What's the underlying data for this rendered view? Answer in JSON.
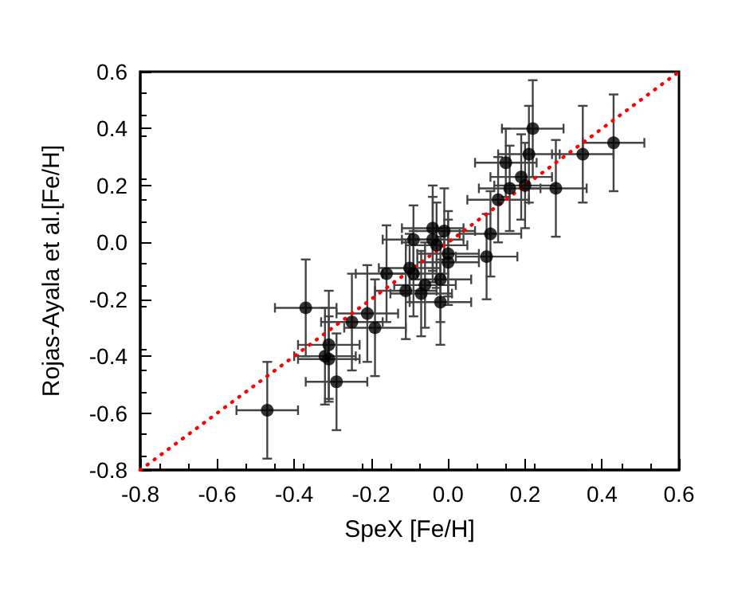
{
  "chart_data": {
    "type": "scatter",
    "xlabel": "SpeX [Fe/H]",
    "ylabel": "Rojas-Ayala et al.[Fe/H]",
    "xlim": [
      -0.8,
      0.6
    ],
    "ylim": [
      -0.8,
      0.6
    ],
    "xticks": [
      -0.8,
      {
        "value": -0.6,
        "label": "-0.6"
      },
      {
        "value": -0.4,
        "label": "-0.4"
      },
      {
        "value": -0.2,
        "label": "-0.2"
      },
      {
        "value": 0,
        "label": "0.0"
      },
      0.2,
      0.4,
      0.6
    ],
    "yticks": [
      -0.8,
      {
        "value": -0.6,
        "label": "-0.6"
      },
      {
        "value": -0.4,
        "label": "-0.4"
      },
      {
        "value": -0.2,
        "label": "-0.2"
      },
      {
        "value": 0,
        "label": "0.0"
      },
      0.2,
      0.4,
      0.6
    ],
    "grid": false,
    "series": [
      {
        "color": "#000000",
        "marker": "circle",
        "x": [
          -0.47,
          -0.37,
          -0.31,
          -0.32,
          -0.31,
          -0.29,
          -0.25,
          -0.21,
          -0.19,
          -0.16,
          -0.11,
          -0.1,
          -0.09,
          0.22,
          0.43,
          0.35,
          0.21,
          0.15,
          0.19,
          0.2,
          0.16,
          0.28,
          0.13,
          0.11,
          0.1,
          -0.01,
          -0.04,
          -0.04,
          -0.03,
          0.0,
          0.0,
          -0.09,
          -0.02,
          -0.06,
          -0.07,
          -0.02
        ],
        "values": [
          -0.59,
          -0.23,
          -0.36,
          -0.4,
          -0.41,
          -0.49,
          -0.28,
          -0.25,
          -0.3,
          -0.11,
          -0.17,
          -0.09,
          0.01,
          0.4,
          0.35,
          0.31,
          0.31,
          0.28,
          0.23,
          0.2,
          0.19,
          0.19,
          0.15,
          0.03,
          -0.05,
          0.04,
          0.05,
          0.01,
          -0.01,
          -0.04,
          -0.07,
          -0.11,
          -0.13,
          -0.15,
          -0.18,
          -0.21
        ],
        "errors": [
          0.17,
          0.17,
          0.19,
          0.17,
          0.15,
          0.17,
          0.17,
          0.17,
          0.17,
          0.17,
          0.17,
          0.12,
          0.12,
          0.17,
          0.17,
          0.17,
          0.17,
          0.12,
          0.15,
          0.15,
          0.15,
          0.17,
          0.15,
          0.15,
          0.15,
          0.15,
          0.15,
          0.15,
          0.15,
          0.15,
          0.15,
          0.15,
          0.15,
          0.15,
          0.15,
          0.15
        ],
        "xerrors": [
          0.08,
          0.08,
          0.08,
          0.08,
          0.08,
          0.08,
          0.08,
          0.08,
          0.08,
          0.08,
          0.08,
          0.08,
          0.08,
          0.08,
          0.08,
          0.08,
          0.08,
          0.08,
          0.08,
          0.08,
          0.08,
          0.08,
          0.08,
          0.08,
          0.08,
          0.08,
          0.08,
          0.08,
          0.08,
          0.08,
          0.08,
          0.08,
          0.08,
          0.08,
          0.08,
          0.08
        ]
      },
      {
        "type": "line",
        "color": "#ff0000",
        "line_style": "dotted",
        "marker": "none",
        "x": [
          -0.8,
          0.6
        ],
        "values": [
          -0.8,
          0.6
        ]
      }
    ]
  }
}
